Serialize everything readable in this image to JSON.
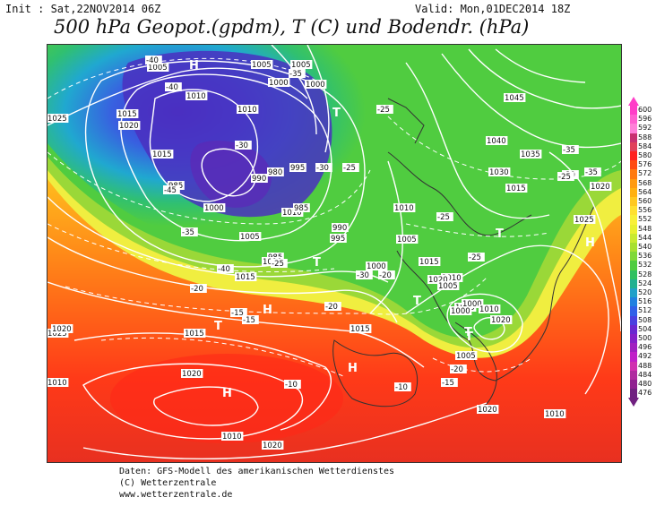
{
  "header": {
    "init": "Init : Sat,22NOV2014 06Z",
    "valid": "Valid: Mon,01DEC2014 18Z",
    "title": "500 hPa Geopot.(gpdm), T (C) und Bodendr. (hPa)"
  },
  "legend": {
    "values": [
      "600",
      "596",
      "592",
      "588",
      "584",
      "580",
      "576",
      "572",
      "568",
      "564",
      "560",
      "556",
      "552",
      "548",
      "544",
      "540",
      "536",
      "532",
      "528",
      "524",
      "520",
      "516",
      "512",
      "508",
      "504",
      "500",
      "496",
      "492",
      "488",
      "484",
      "480",
      "476"
    ],
    "colors": [
      "#ff3ec8",
      "#ff5fd0",
      "#ff80d8",
      "#c83070",
      "#e0405a",
      "#ff2020",
      "#ff4a10",
      "#ff7a10",
      "#ff9a10",
      "#ffb010",
      "#ffc820",
      "#ffe030",
      "#f8f038",
      "#e8f030",
      "#c8ea30",
      "#a8e030",
      "#80d838",
      "#50cc40",
      "#30c060",
      "#20b090",
      "#20a0c8",
      "#2080e0",
      "#3060e8",
      "#4a40e0",
      "#6a28d0",
      "#8420c8",
      "#a020c0",
      "#c020c8",
      "#d030b0",
      "#b02ca0",
      "#902090",
      "#702080"
    ]
  },
  "map": {
    "pressure_labels": [
      "1005",
      "1010",
      "1005",
      "1005",
      "1010",
      "1000",
      "1000",
      "1015",
      "1020",
      "1025",
      "1015",
      "985",
      "1000",
      "990",
      "980",
      "995",
      "985",
      "990",
      "995",
      "1005",
      "1010",
      "1000",
      "1005",
      "1010",
      "1015",
      "1010",
      "1020",
      "1025",
      "1020",
      "1015",
      "1010",
      "1005",
      "1000",
      "1010",
      "1020",
      "1020",
      "1010",
      "1030",
      "1035",
      "1040",
      "1045",
      "1015",
      "1020",
      "1025",
      "1020",
      "1010",
      "1015",
      "1005",
      "1000",
      "1010",
      "1020",
      "985",
      "1015",
      "1000"
    ],
    "temperature_labels": [
      "-40",
      "-40",
      "-35",
      "-30",
      "-35",
      "-40",
      "-45",
      "-25",
      "-20",
      "-15",
      "-10",
      "-15",
      "-20",
      "-25",
      "-30",
      "-35",
      "-30",
      "-25",
      "-25",
      "-20",
      "-25",
      "-15",
      "-10",
      "-20",
      "-25",
      "-30",
      "-35"
    ],
    "high_marker": "H",
    "low_marker": "T"
  },
  "footer": {
    "line1": "Daten: GFS-Modell des amerikanischen Wetterdienstes",
    "line2": "(C) Wetterzentrale",
    "line3": "www.wetterzentrale.de"
  }
}
